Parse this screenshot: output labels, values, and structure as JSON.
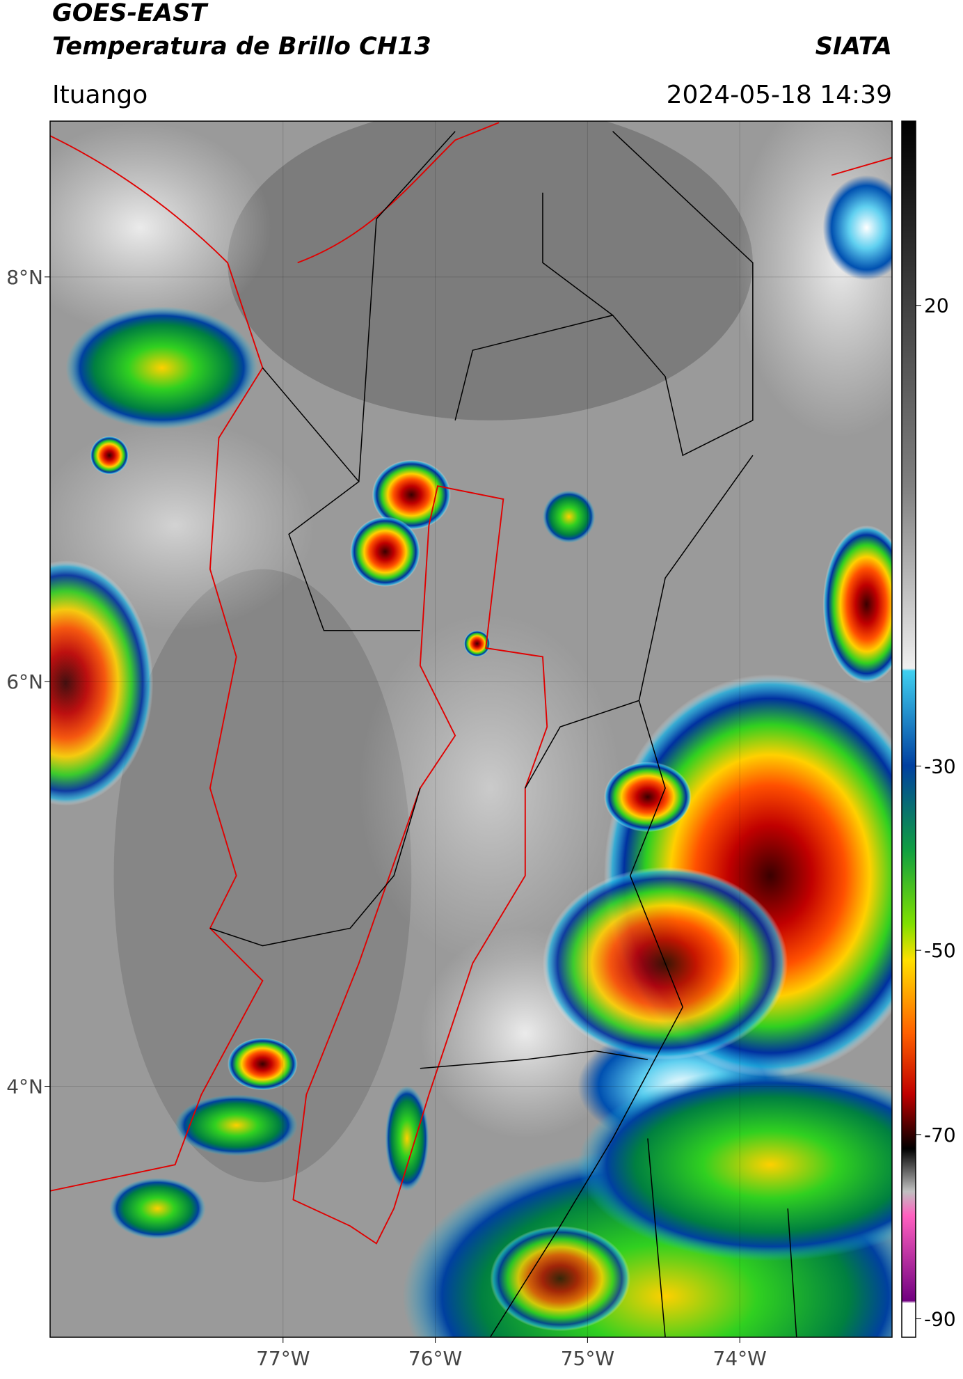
{
  "header": {
    "title": "GOES-EAST",
    "subtitle": "Temperatura de Brillo CH13",
    "source": "SIATA",
    "location": "Ituango",
    "datetime": "2024-05-18 14:39"
  },
  "map": {
    "lonlim": [
      -78.53,
      -73.0
    ],
    "latlim": [
      2.76,
      8.77
    ],
    "lonticks": [
      {
        "value": -77,
        "label": "77°W"
      },
      {
        "value": -76,
        "label": "76°W"
      },
      {
        "value": -75,
        "label": "75°W"
      },
      {
        "value": -74,
        "label": "74°W"
      }
    ],
    "latticks": [
      {
        "value": 4,
        "label": "4°N"
      },
      {
        "value": 6,
        "label": "6°N"
      },
      {
        "value": 8,
        "label": "8°N"
      }
    ],
    "grid": true
  },
  "colorbar": {
    "lim": [
      -92,
      40
    ],
    "ticks": [
      20,
      -30,
      -50,
      -70,
      -90
    ]
  }
}
